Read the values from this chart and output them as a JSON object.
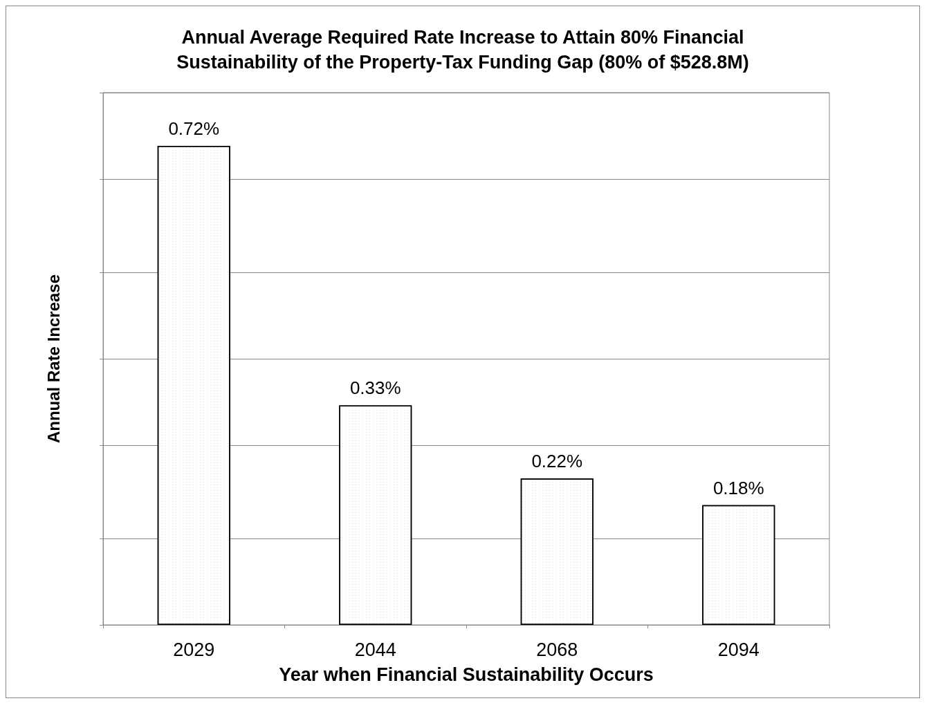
{
  "chart_data": {
    "type": "bar",
    "title": "Annual Average Required Rate Increase to Attain 80% Financial\nSustainability of the Property-Tax Funding Gap (80% of $528.8M)",
    "xlabel": "Year when Financial Sustainability Occurs",
    "ylabel": "Annual Rate Increase",
    "categories": [
      "2029",
      "2044",
      "2068",
      "2094"
    ],
    "values": [
      0.72,
      0.33,
      0.22,
      0.18
    ],
    "value_labels": [
      "0.72%",
      "0.33%",
      "0.22%",
      "0.18%"
    ],
    "color": "#ffffff",
    "ylim": [
      0,
      0.8
    ],
    "yticks": [
      {
        "value": 0,
        "label": null
      },
      {
        "value": 0.13,
        "label": null
      },
      {
        "value": 0.27,
        "label": null
      },
      {
        "value": 0.4,
        "label": null
      },
      {
        "value": 0.53,
        "label": null
      },
      {
        "value": 0.67,
        "label": null
      },
      {
        "value": 0.8,
        "label": null
      }
    ],
    "grid": "y",
    "tick_labels": "x"
  }
}
